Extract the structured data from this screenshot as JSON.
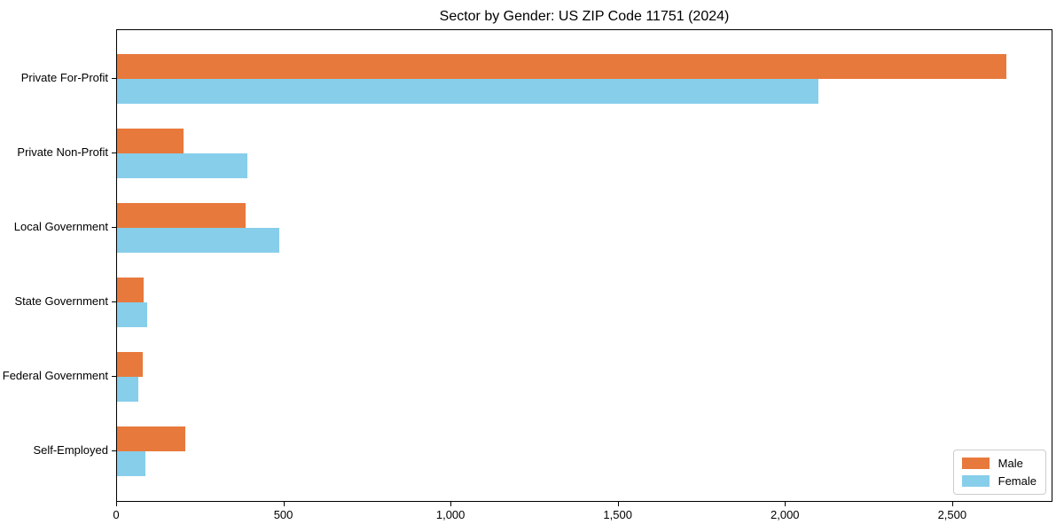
{
  "figure": {
    "title": "Sector by Gender: US ZIP Code 11751 (2024)"
  },
  "chart_data": {
    "type": "bar",
    "orientation": "horizontal",
    "title": "Sector by Gender: US ZIP Code 11751 (2024)",
    "categories": [
      "Private For-Profit",
      "Private Non-Profit",
      "Local Government",
      "State Government",
      "Federal Government",
      "Self-Employed"
    ],
    "series": [
      {
        "name": "Male",
        "color": "#E8793C",
        "values": [
          2665,
          200,
          385,
          80,
          78,
          205
        ]
      },
      {
        "name": "Female",
        "color": "#87CEEB",
        "values": [
          2100,
          390,
          485,
          90,
          65,
          85
        ]
      }
    ],
    "xlabel": "",
    "ylabel": "",
    "xlim": [
      0,
      2800
    ],
    "xticks": [
      {
        "value": 0,
        "label": "0"
      },
      {
        "value": 500,
        "label": "500"
      },
      {
        "value": 1000,
        "label": "1,000"
      },
      {
        "value": 1500,
        "label": "1,500"
      },
      {
        "value": 2000,
        "label": "2,000"
      },
      {
        "value": 2500,
        "label": "2,500"
      }
    ],
    "grid": false,
    "legend": {
      "position": "lower right",
      "entries": [
        "Male",
        "Female"
      ]
    }
  }
}
